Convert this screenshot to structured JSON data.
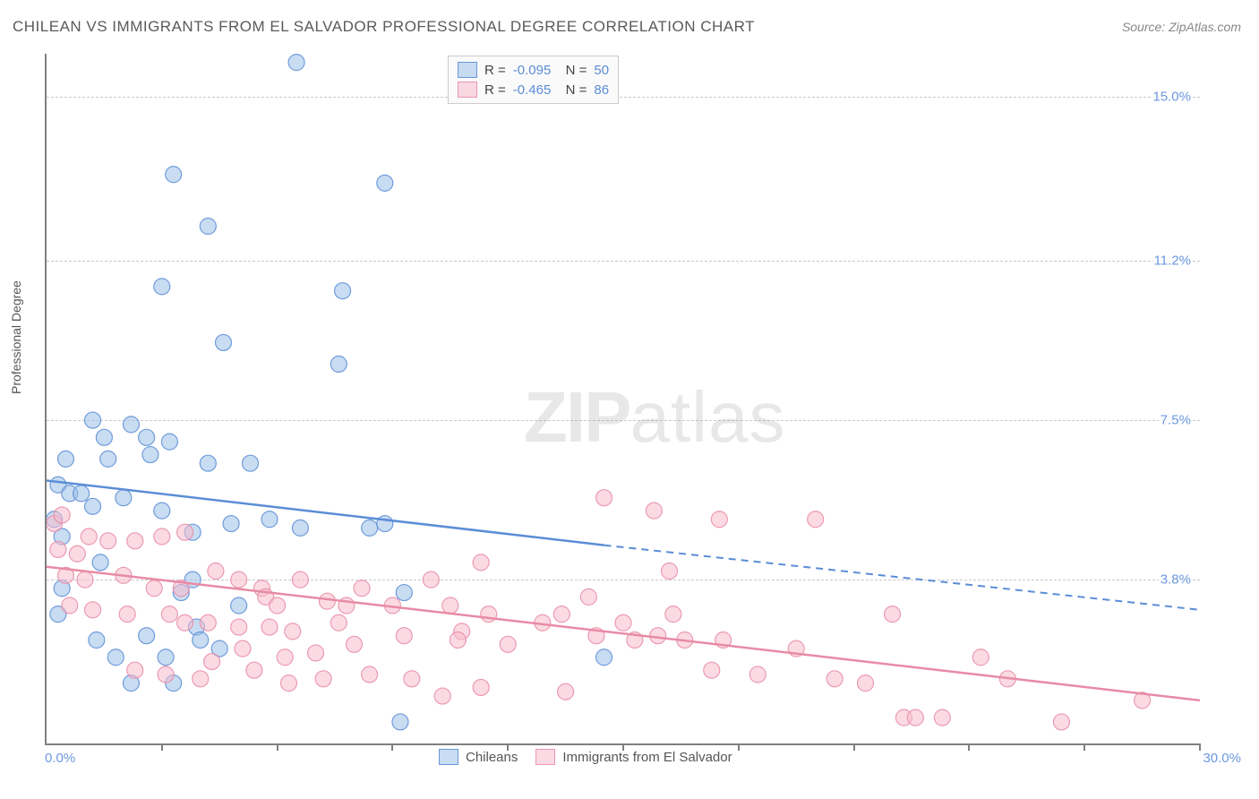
{
  "title": "CHILEAN VS IMMIGRANTS FROM EL SALVADOR PROFESSIONAL DEGREE CORRELATION CHART",
  "source": "Source: ZipAtlas.com",
  "ylabel": "Professional Degree",
  "watermark_zip": "ZIP",
  "watermark_atlas": "atlas",
  "chart": {
    "type": "scatter",
    "xlim": [
      0,
      30
    ],
    "ylim": [
      0,
      16
    ],
    "xlim_labels": [
      "0.0%",
      "30.0%"
    ],
    "ytick_values": [
      3.8,
      7.5,
      11.2,
      15.0
    ],
    "ytick_labels": [
      "3.8%",
      "7.5%",
      "11.2%",
      "15.0%"
    ],
    "xtick_values": [
      3,
      6,
      9,
      12,
      15,
      18,
      21,
      24,
      27,
      30
    ],
    "background_color": "#ffffff",
    "grid_color": "#c8c8c8",
    "marker_radius": 9,
    "series": [
      {
        "name": "Chileans",
        "color": "#5b8dd6",
        "fill": "rgba(154,192,232,0.55)",
        "stroke": "rgba(91,141,214,0.85)",
        "R": "-0.095",
        "N": "50",
        "regression": {
          "x0": 0,
          "y0": 6.1,
          "x1_solid": 14.5,
          "y1_solid": 4.6,
          "x1": 30,
          "y1": 3.1
        },
        "points": [
          [
            6.5,
            15.8
          ],
          [
            3.3,
            13.2
          ],
          [
            8.8,
            13.0
          ],
          [
            4.2,
            12.0
          ],
          [
            7.7,
            10.5
          ],
          [
            3.0,
            10.6
          ],
          [
            4.6,
            9.3
          ],
          [
            7.6,
            8.8
          ],
          [
            1.2,
            7.5
          ],
          [
            2.2,
            7.4
          ],
          [
            1.5,
            7.1
          ],
          [
            2.6,
            7.1
          ],
          [
            3.2,
            7.0
          ],
          [
            1.6,
            6.6
          ],
          [
            2.7,
            6.7
          ],
          [
            4.2,
            6.5
          ],
          [
            5.3,
            6.5
          ],
          [
            0.5,
            6.6
          ],
          [
            0.3,
            6.0
          ],
          [
            0.6,
            5.8
          ],
          [
            0.9,
            5.8
          ],
          [
            1.2,
            5.5
          ],
          [
            2.0,
            5.7
          ],
          [
            0.2,
            5.2
          ],
          [
            0.4,
            4.8
          ],
          [
            3.0,
            5.4
          ],
          [
            3.8,
            4.9
          ],
          [
            4.8,
            5.1
          ],
          [
            5.8,
            5.2
          ],
          [
            6.6,
            5.0
          ],
          [
            8.4,
            5.0
          ],
          [
            8.8,
            5.1
          ],
          [
            1.4,
            4.2
          ],
          [
            0.4,
            3.6
          ],
          [
            0.3,
            3.0
          ],
          [
            3.5,
            3.5
          ],
          [
            3.8,
            3.8
          ],
          [
            5.0,
            3.2
          ],
          [
            3.9,
            2.7
          ],
          [
            2.6,
            2.5
          ],
          [
            4.0,
            2.4
          ],
          [
            1.3,
            2.4
          ],
          [
            1.8,
            2.0
          ],
          [
            3.1,
            2.0
          ],
          [
            4.5,
            2.2
          ],
          [
            2.2,
            1.4
          ],
          [
            3.3,
            1.4
          ],
          [
            9.2,
            0.5
          ],
          [
            14.5,
            2.0
          ],
          [
            9.3,
            3.5
          ]
        ]
      },
      {
        "name": "Immigrants from El Salvador",
        "color": "#e88ba6",
        "fill": "rgba(248,187,205,0.55)",
        "stroke": "rgba(232,139,166,0.85)",
        "R": "-0.465",
        "N": "86",
        "regression": {
          "x0": 0,
          "y0": 4.1,
          "x1_solid": 30,
          "y1_solid": 1.0,
          "x1": 30,
          "y1": 1.0
        },
        "points": [
          [
            0.2,
            5.1
          ],
          [
            0.4,
            5.3
          ],
          [
            0.3,
            4.5
          ],
          [
            0.8,
            4.4
          ],
          [
            1.1,
            4.8
          ],
          [
            1.6,
            4.7
          ],
          [
            2.3,
            4.7
          ],
          [
            3.0,
            4.8
          ],
          [
            3.6,
            4.9
          ],
          [
            0.5,
            3.9
          ],
          [
            1.0,
            3.8
          ],
          [
            2.0,
            3.9
          ],
          [
            2.8,
            3.6
          ],
          [
            3.5,
            3.6
          ],
          [
            4.4,
            4.0
          ],
          [
            5.0,
            3.8
          ],
          [
            5.6,
            3.6
          ],
          [
            5.7,
            3.4
          ],
          [
            6.0,
            3.2
          ],
          [
            6.6,
            3.8
          ],
          [
            0.6,
            3.2
          ],
          [
            1.2,
            3.1
          ],
          [
            2.1,
            3.0
          ],
          [
            3.2,
            3.0
          ],
          [
            3.6,
            2.8
          ],
          [
            4.2,
            2.8
          ],
          [
            5.0,
            2.7
          ],
          [
            5.8,
            2.7
          ],
          [
            6.4,
            2.6
          ],
          [
            7.3,
            3.3
          ],
          [
            7.8,
            3.2
          ],
          [
            8.2,
            3.6
          ],
          [
            9.0,
            3.2
          ],
          [
            10.0,
            3.8
          ],
          [
            10.5,
            3.2
          ],
          [
            11.3,
            4.2
          ],
          [
            10.8,
            2.6
          ],
          [
            9.3,
            2.5
          ],
          [
            8.0,
            2.3
          ],
          [
            7.0,
            2.1
          ],
          [
            6.2,
            2.0
          ],
          [
            5.1,
            2.2
          ],
          [
            4.3,
            1.9
          ],
          [
            5.4,
            1.7
          ],
          [
            6.3,
            1.4
          ],
          [
            7.2,
            1.5
          ],
          [
            8.4,
            1.6
          ],
          [
            9.5,
            1.5
          ],
          [
            10.3,
            1.1
          ],
          [
            10.7,
            2.4
          ],
          [
            11.3,
            1.3
          ],
          [
            11.5,
            3.0
          ],
          [
            12.0,
            2.3
          ],
          [
            12.9,
            2.8
          ],
          [
            13.5,
            1.2
          ],
          [
            13.4,
            3.0
          ],
          [
            14.1,
            3.4
          ],
          [
            14.3,
            2.5
          ],
          [
            15.0,
            2.8
          ],
          [
            15.3,
            2.4
          ],
          [
            15.9,
            2.5
          ],
          [
            16.3,
            3.0
          ],
          [
            16.6,
            2.4
          ],
          [
            17.3,
            1.7
          ],
          [
            17.6,
            2.4
          ],
          [
            18.5,
            1.6
          ],
          [
            14.5,
            5.7
          ],
          [
            15.8,
            5.4
          ],
          [
            17.5,
            5.2
          ],
          [
            20.0,
            5.2
          ],
          [
            16.2,
            4.0
          ],
          [
            19.5,
            2.2
          ],
          [
            20.5,
            1.5
          ],
          [
            21.3,
            1.4
          ],
          [
            22.0,
            3.0
          ],
          [
            22.3,
            0.6
          ],
          [
            23.3,
            0.6
          ],
          [
            24.3,
            2.0
          ],
          [
            25.0,
            1.5
          ],
          [
            26.4,
            0.5
          ],
          [
            28.5,
            1.0
          ],
          [
            22.6,
            0.6
          ],
          [
            2.3,
            1.7
          ],
          [
            3.1,
            1.6
          ],
          [
            4.0,
            1.5
          ],
          [
            7.6,
            2.8
          ]
        ]
      }
    ]
  },
  "legend_bottom": [
    "Chileans",
    "Immigrants from El Salvador"
  ],
  "colors": {
    "blue_tick": "#6b98e0",
    "axis": "#808080"
  }
}
